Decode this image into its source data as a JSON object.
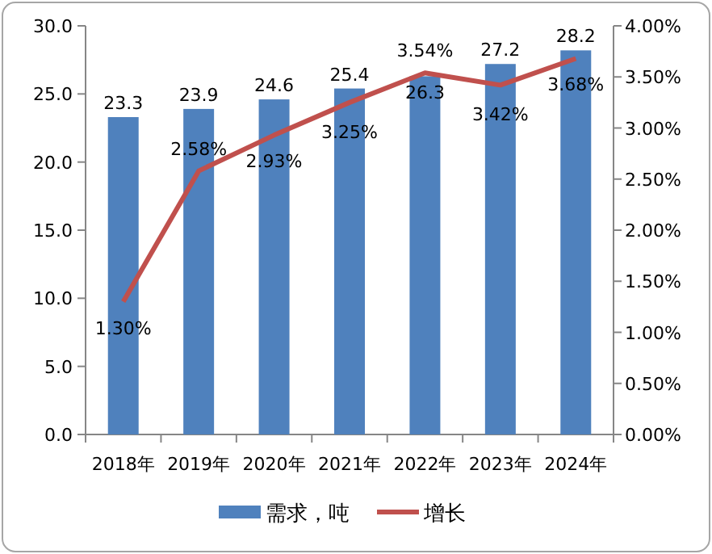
{
  "chart_data": {
    "type": "bar",
    "categories": [
      "2018年",
      "2019年",
      "2020年",
      "2021年",
      "2022年",
      "2023年",
      "2024年"
    ],
    "series": [
      {
        "name": "需求，吨",
        "color": "#4f81bd",
        "values": [
          23.3,
          23.9,
          24.6,
          25.4,
          26.3,
          27.2,
          28.2
        ],
        "value_labels": [
          "23.3",
          "23.9",
          "24.6",
          "25.4",
          "26.3",
          "27.2",
          "28.2"
        ]
      },
      {
        "name": "增长",
        "type": "line",
        "axis": "y2",
        "color": "#c0504d",
        "values": [
          1.3,
          2.58,
          2.93,
          3.25,
          3.54,
          3.42,
          3.68
        ],
        "value_labels": [
          "1.30%",
          "2.58%",
          "2.93%",
          "3.25%",
          "3.54%",
          "3.42%",
          "3.68%"
        ]
      }
    ],
    "ylim": [
      0,
      30
    ],
    "yticks": [
      {
        "value": 0,
        "label": "0.0"
      },
      {
        "value": 5,
        "label": "5.0"
      },
      {
        "value": 10,
        "label": "10.0"
      },
      {
        "value": 15,
        "label": "15.0"
      },
      {
        "value": 20,
        "label": "20.0"
      },
      {
        "value": 25,
        "label": "25.0"
      },
      {
        "value": 30,
        "label": "30.0"
      }
    ],
    "y2lim": [
      0,
      4
    ],
    "y2ticks": [
      {
        "value": 0,
        "label": "0.00%"
      },
      {
        "value": 0.5,
        "label": "0.50%"
      },
      {
        "value": 1,
        "label": "1.00%"
      },
      {
        "value": 1.5,
        "label": "1.50%"
      },
      {
        "value": 2,
        "label": "2.00%"
      },
      {
        "value": 2.5,
        "label": "2.50%"
      },
      {
        "value": 3,
        "label": "3.00%"
      },
      {
        "value": 3.5,
        "label": "3.50%"
      },
      {
        "value": 4,
        "label": "4.00%"
      }
    ],
    "legend": "bottom",
    "marker": "none",
    "line_style": "solid"
  }
}
